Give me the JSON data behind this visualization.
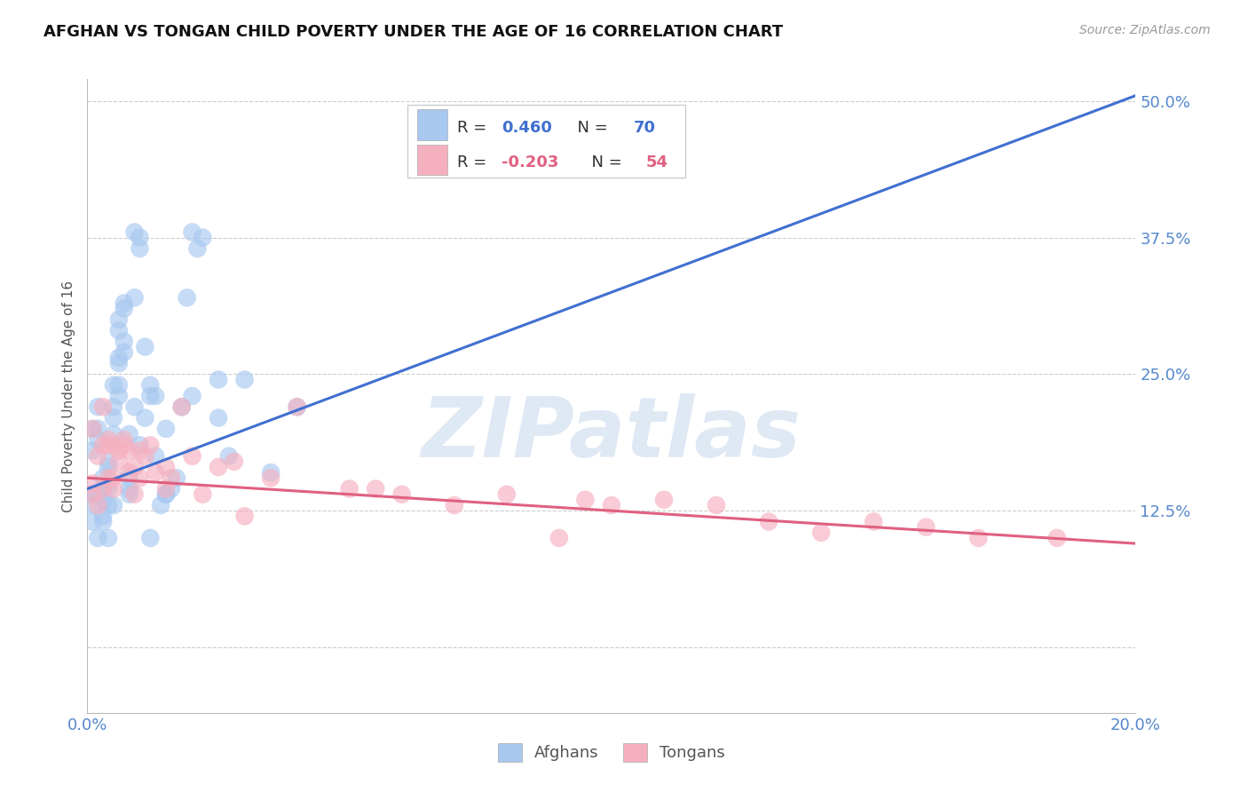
{
  "title": "AFGHAN VS TONGAN CHILD POVERTY UNDER THE AGE OF 16 CORRELATION CHART",
  "source": "Source: ZipAtlas.com",
  "ylabel": "Child Poverty Under the Age of 16",
  "xlim": [
    0.0,
    0.2
  ],
  "ylim": [
    -0.06,
    0.52
  ],
  "yticks": [
    0.0,
    0.125,
    0.25,
    0.375,
    0.5
  ],
  "ytick_labels": [
    "",
    "12.5%",
    "25.0%",
    "37.5%",
    "50.0%"
  ],
  "xticks": [
    0.0,
    0.05,
    0.1,
    0.15,
    0.2
  ],
  "xtick_labels": [
    "0.0%",
    "",
    "",
    "",
    "20.0%"
  ],
  "afghan_color": "#A8C8F0",
  "tongan_color": "#F5B0C0",
  "afghan_line_color": "#4070D0",
  "tongan_line_color": "#E06080",
  "background_color": "#FFFFFF",
  "grid_color": "#CCCCCC",
  "tick_color": "#5588CC",
  "title_fontsize": 13,
  "axis_label_fontsize": 11,
  "tick_fontsize": 13,
  "watermark": "ZIPatlas",
  "afghan_scatter_x": [
    0.001,
    0.001,
    0.001,
    0.002,
    0.002,
    0.002,
    0.002,
    0.003,
    0.003,
    0.003,
    0.003,
    0.004,
    0.004,
    0.004,
    0.004,
    0.005,
    0.005,
    0.005,
    0.005,
    0.005,
    0.006,
    0.006,
    0.006,
    0.006,
    0.006,
    0.007,
    0.007,
    0.007,
    0.007,
    0.008,
    0.008,
    0.008,
    0.008,
    0.009,
    0.009,
    0.009,
    0.01,
    0.01,
    0.01,
    0.011,
    0.011,
    0.012,
    0.012,
    0.013,
    0.013,
    0.014,
    0.015,
    0.015,
    0.016,
    0.017,
    0.018,
    0.019,
    0.02,
    0.021,
    0.022,
    0.025,
    0.027,
    0.03,
    0.035,
    0.04,
    0.001,
    0.001,
    0.002,
    0.003,
    0.004,
    0.006,
    0.012,
    0.015,
    0.02,
    0.025
  ],
  "afghan_scatter_y": [
    0.13,
    0.115,
    0.2,
    0.19,
    0.22,
    0.14,
    0.1,
    0.135,
    0.145,
    0.12,
    0.155,
    0.13,
    0.145,
    0.165,
    0.17,
    0.21,
    0.22,
    0.24,
    0.195,
    0.13,
    0.23,
    0.26,
    0.3,
    0.29,
    0.265,
    0.28,
    0.31,
    0.315,
    0.27,
    0.195,
    0.14,
    0.145,
    0.155,
    0.22,
    0.32,
    0.38,
    0.365,
    0.375,
    0.185,
    0.275,
    0.21,
    0.24,
    0.1,
    0.23,
    0.175,
    0.13,
    0.2,
    0.14,
    0.145,
    0.155,
    0.22,
    0.32,
    0.38,
    0.365,
    0.375,
    0.21,
    0.175,
    0.245,
    0.16,
    0.22,
    0.18,
    0.14,
    0.2,
    0.115,
    0.1,
    0.24,
    0.23,
    0.14,
    0.23,
    0.245
  ],
  "tongan_scatter_x": [
    0.001,
    0.001,
    0.001,
    0.002,
    0.002,
    0.003,
    0.003,
    0.003,
    0.004,
    0.004,
    0.004,
    0.005,
    0.005,
    0.005,
    0.006,
    0.006,
    0.007,
    0.007,
    0.008,
    0.008,
    0.009,
    0.009,
    0.01,
    0.01,
    0.011,
    0.012,
    0.013,
    0.015,
    0.015,
    0.016,
    0.018,
    0.02,
    0.022,
    0.025,
    0.028,
    0.03,
    0.035,
    0.04,
    0.05,
    0.055,
    0.06,
    0.07,
    0.08,
    0.09,
    0.095,
    0.1,
    0.11,
    0.12,
    0.13,
    0.14,
    0.15,
    0.16,
    0.17,
    0.185
  ],
  "tongan_scatter_y": [
    0.15,
    0.14,
    0.2,
    0.175,
    0.13,
    0.185,
    0.145,
    0.22,
    0.19,
    0.155,
    0.185,
    0.145,
    0.155,
    0.185,
    0.18,
    0.17,
    0.19,
    0.185,
    0.16,
    0.18,
    0.165,
    0.14,
    0.18,
    0.155,
    0.175,
    0.185,
    0.16,
    0.165,
    0.145,
    0.155,
    0.22,
    0.175,
    0.14,
    0.165,
    0.17,
    0.12,
    0.155,
    0.22,
    0.145,
    0.145,
    0.14,
    0.13,
    0.14,
    0.1,
    0.135,
    0.13,
    0.135,
    0.13,
    0.115,
    0.105,
    0.115,
    0.11,
    0.1,
    0.1
  ],
  "afghan_line_x0": 0.0,
  "afghan_line_y0": 0.145,
  "afghan_line_x1": 0.2,
  "afghan_line_y1": 0.505,
  "tongan_line_x0": 0.0,
  "tongan_line_y0": 0.155,
  "tongan_line_x1": 0.2,
  "tongan_line_y1": 0.095
}
